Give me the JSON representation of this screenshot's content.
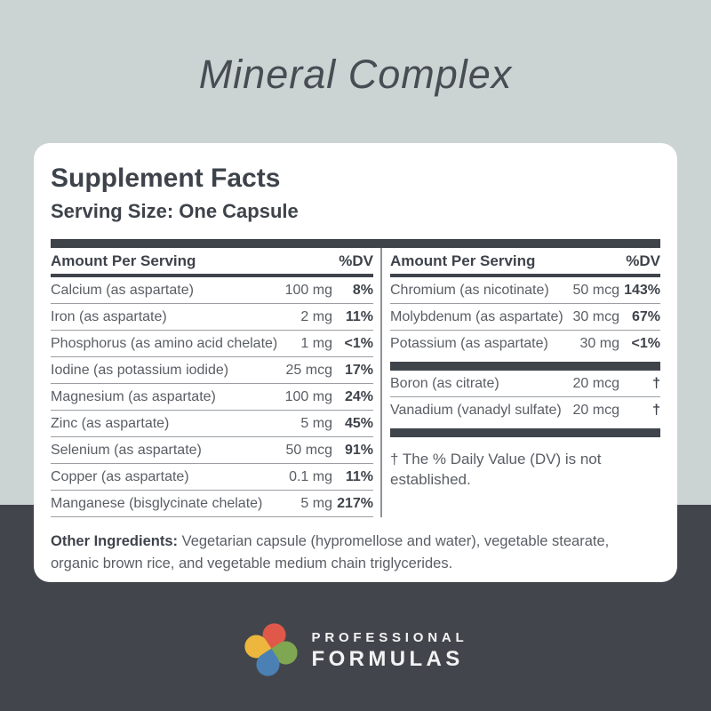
{
  "page": {
    "product_title": "Mineral Complex"
  },
  "panel": {
    "title": "Supplement Facts",
    "serving_size": "Serving Size: One Capsule",
    "column_header": {
      "amount_label": "Amount Per Serving",
      "dv_label": "%DV"
    },
    "left_rows": [
      {
        "name": "Calcium (as aspartate)",
        "amount": "100 mg",
        "dv": "8%"
      },
      {
        "name": "Iron (as aspartate)",
        "amount": "2 mg",
        "dv": "11%"
      },
      {
        "name": "Phosphorus (as amino acid chelate)",
        "amount": "1 mg",
        "dv": "<1%"
      },
      {
        "name": "Iodine (as potassium iodide)",
        "amount": "25 mcg",
        "dv": "17%"
      },
      {
        "name": "Magnesium (as aspartate)",
        "amount": "100 mg",
        "dv": "24%"
      },
      {
        "name": "Zinc (as aspartate)",
        "amount": "5 mg",
        "dv": "45%"
      },
      {
        "name": "Selenium (as aspartate)",
        "amount": "50 mcg",
        "dv": "91%"
      },
      {
        "name": "Copper (as aspartate)",
        "amount": "0.1 mg",
        "dv": "11%"
      },
      {
        "name": "Manganese (bisglycinate chelate)",
        "amount": "5 mg",
        "dv": "217%"
      }
    ],
    "right_rows_top": [
      {
        "name": "Chromium (as nicotinate)",
        "amount": "50 mcg",
        "dv": "143%"
      },
      {
        "name": "Molybdenum (as aspartate)",
        "amount": "30 mcg",
        "dv": "67%"
      },
      {
        "name": "Potassium (as aspartate)",
        "amount": "30 mg",
        "dv": "<1%"
      }
    ],
    "right_rows_bottom": [
      {
        "name": "Boron (as citrate)",
        "amount": "20 mcg",
        "dv": "†"
      },
      {
        "name": "Vanadium (vanadyl sulfate)",
        "amount": "20 mcg",
        "dv": "†"
      }
    ],
    "footnote": "† The % Daily Value (DV) is not established.",
    "other_ingredients_label": "Other Ingredients:",
    "other_ingredients_text": " Vegetarian capsule (hypromellose and water), vegetable stearate, organic brown rice, and vegetable medium chain triglycerides."
  },
  "footer": {
    "brand_line1": "PROFESSIONAL",
    "brand_line2": "FORMULAS"
  },
  "colors": {
    "background_top": "#ccd3d3",
    "background_bottom": "#42464c",
    "card_background": "#ffffff",
    "heading_text": "#3e434b",
    "body_text": "#5a5e64",
    "rule_thick": "#3f444b",
    "rule_thin": "#9b9ea2",
    "logo_petal_top": "#df5849",
    "logo_petal_left": "#edb73d",
    "logo_petal_right": "#7fa650",
    "logo_petal_bottom": "#4b80b4"
  }
}
